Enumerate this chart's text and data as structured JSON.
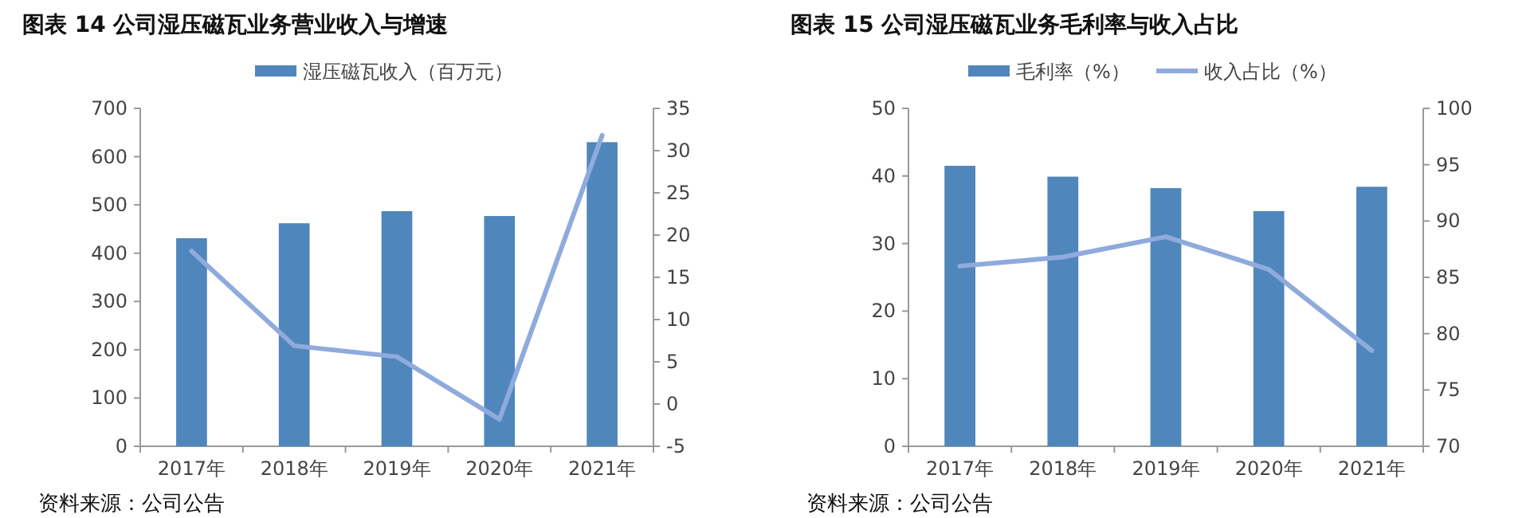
{
  "chart_data": [
    {
      "type": "bar",
      "title": "图表 14 公司湿压磁瓦业务营业收入与增速",
      "categories": [
        "2017年",
        "2018年",
        "2019年",
        "2020年",
        "2021年"
      ],
      "series": [
        {
          "name": "湿压磁瓦收入（百万元）",
          "color": "#4f86bb",
          "values": [
            431,
            462,
            487,
            477,
            630
          ]
        },
        {
          "type": "line",
          "axis": "y2",
          "color": "#8faadc",
          "values": [
            18.1,
            6.9,
            5.6,
            -1.8,
            31.8
          ]
        }
      ],
      "ylim": [
        0,
        700
      ],
      "yticks": [
        0,
        100,
        200,
        300,
        400,
        500,
        600,
        700
      ],
      "y2lim": [
        -5,
        35
      ],
      "y2ticks": [
        -5,
        0,
        5,
        10,
        15,
        20,
        25,
        30,
        35
      ],
      "legend": "top",
      "grid": false,
      "annotations": [
        "资料来源：公司公告"
      ]
    },
    {
      "type": "bar",
      "title": "图表 15 公司湿压磁瓦业务毛利率与收入占比",
      "categories": [
        "2017年",
        "2018年",
        "2019年",
        "2020年",
        "2021年"
      ],
      "series": [
        {
          "name": "毛利率（%）",
          "color": "#4f86bb",
          "values": [
            41.5,
            39.9,
            38.2,
            34.8,
            38.4
          ]
        },
        {
          "name": "收入占比（%）",
          "type": "line",
          "axis": "y2",
          "color": "#8faadc",
          "values": [
            86.0,
            86.8,
            88.6,
            85.7,
            78.5
          ]
        }
      ],
      "ylim": [
        0,
        50
      ],
      "yticks": [
        0,
        10,
        20,
        30,
        40,
        50
      ],
      "y2lim": [
        70,
        100
      ],
      "y2ticks": [
        70,
        75,
        80,
        85,
        90,
        95,
        100
      ],
      "legend": "top",
      "grid": false,
      "annotations": [
        "资料来源：公司公告"
      ]
    }
  ]
}
